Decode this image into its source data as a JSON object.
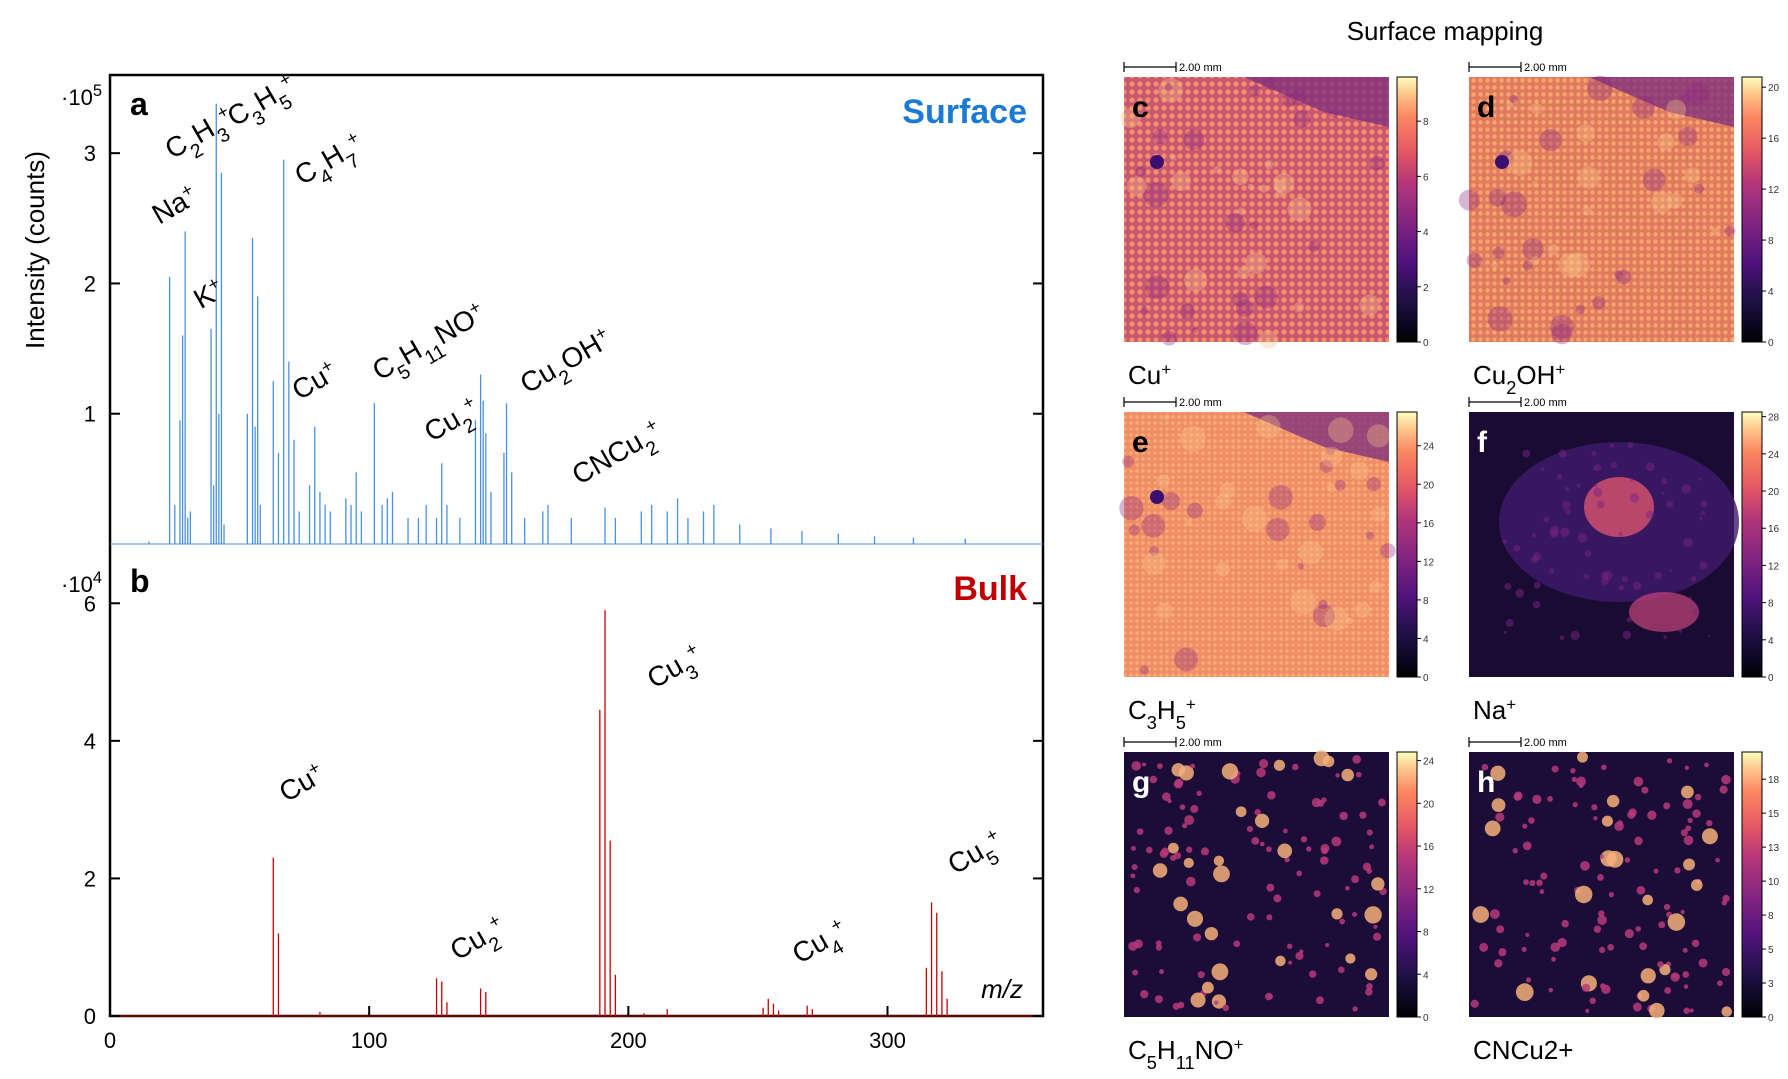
{
  "figure_title": "Surface mapping",
  "chart_data": [
    {
      "type": "line",
      "panel": "a",
      "title": "Surface",
      "title_color": "#1a7ad4",
      "series_color": "#4a90e2",
      "ylabel": "Intensity (counts)",
      "y_multiplier": "·10",
      "y_exponent": "5",
      "xlim": [
        0,
        360
      ],
      "ylim": [
        0,
        3.6
      ],
      "yticks": [
        "1",
        "2",
        "3"
      ],
      "ytick_values": [
        1,
        2,
        3
      ],
      "peaks": [
        {
          "x": 15,
          "y": 0.02
        },
        {
          "x": 23,
          "y": 2.05
        },
        {
          "x": 25,
          "y": 0.3
        },
        {
          "x": 27,
          "y": 0.95
        },
        {
          "x": 28,
          "y": 1.6
        },
        {
          "x": 29,
          "y": 2.4
        },
        {
          "x": 30,
          "y": 0.2
        },
        {
          "x": 31,
          "y": 0.25
        },
        {
          "x": 39,
          "y": 1.65
        },
        {
          "x": 40,
          "y": 0.45
        },
        {
          "x": 41,
          "y": 3.38
        },
        {
          "x": 42,
          "y": 1.0
        },
        {
          "x": 43,
          "y": 2.85
        },
        {
          "x": 44,
          "y": 0.15
        },
        {
          "x": 53,
          "y": 1.0
        },
        {
          "x": 55,
          "y": 2.35
        },
        {
          "x": 56,
          "y": 0.9
        },
        {
          "x": 57,
          "y": 1.9
        },
        {
          "x": 58,
          "y": 0.3
        },
        {
          "x": 63,
          "y": 1.25
        },
        {
          "x": 65,
          "y": 0.7
        },
        {
          "x": 67,
          "y": 2.95
        },
        {
          "x": 69,
          "y": 1.4
        },
        {
          "x": 71,
          "y": 0.8
        },
        {
          "x": 73,
          "y": 0.25
        },
        {
          "x": 77,
          "y": 0.45
        },
        {
          "x": 79,
          "y": 0.9
        },
        {
          "x": 81,
          "y": 0.4
        },
        {
          "x": 83,
          "y": 0.3
        },
        {
          "x": 85,
          "y": 0.25
        },
        {
          "x": 91,
          "y": 0.35
        },
        {
          "x": 93,
          "y": 0.3
        },
        {
          "x": 95,
          "y": 0.55
        },
        {
          "x": 97,
          "y": 0.25
        },
        {
          "x": 102,
          "y": 1.08
        },
        {
          "x": 105,
          "y": 0.3
        },
        {
          "x": 107,
          "y": 0.35
        },
        {
          "x": 109,
          "y": 0.4
        },
        {
          "x": 115,
          "y": 0.2
        },
        {
          "x": 119,
          "y": 0.2
        },
        {
          "x": 122,
          "y": 0.3
        },
        {
          "x": 126,
          "y": 0.2
        },
        {
          "x": 128,
          "y": 0.62
        },
        {
          "x": 130,
          "y": 0.3
        },
        {
          "x": 135,
          "y": 0.2
        },
        {
          "x": 141,
          "y": 0.95
        },
        {
          "x": 143,
          "y": 1.3
        },
        {
          "x": 144,
          "y": 1.1
        },
        {
          "x": 145,
          "y": 0.85
        },
        {
          "x": 147,
          "y": 0.4
        },
        {
          "x": 152,
          "y": 0.7
        },
        {
          "x": 153,
          "y": 1.08
        },
        {
          "x": 155,
          "y": 0.55
        },
        {
          "x": 160,
          "y": 0.2
        },
        {
          "x": 167,
          "y": 0.25
        },
        {
          "x": 169,
          "y": 0.3
        },
        {
          "x": 178,
          "y": 0.2
        },
        {
          "x": 191,
          "y": 0.28
        },
        {
          "x": 195,
          "y": 0.2
        },
        {
          "x": 205,
          "y": 0.25
        },
        {
          "x": 209,
          "y": 0.3
        },
        {
          "x": 215,
          "y": 0.25
        },
        {
          "x": 219,
          "y": 0.35
        },
        {
          "x": 223,
          "y": 0.2
        },
        {
          "x": 229,
          "y": 0.25
        },
        {
          "x": 233,
          "y": 0.3
        },
        {
          "x": 243,
          "y": 0.15
        },
        {
          "x": 255,
          "y": 0.12
        },
        {
          "x": 267,
          "y": 0.1
        },
        {
          "x": 281,
          "y": 0.08
        },
        {
          "x": 295,
          "y": 0.06
        },
        {
          "x": 310,
          "y": 0.05
        },
        {
          "x": 330,
          "y": 0.04
        }
      ],
      "annotations": [
        {
          "base": "Na",
          "subs": [],
          "charge": "+",
          "x": 19,
          "y": 2.45
        },
        {
          "base": "C",
          "subs": [
            "2",
            "H",
            "3"
          ],
          "charge": "+",
          "x": 24,
          "y": 2.95
        },
        {
          "base": "K",
          "subs": [],
          "charge": "+",
          "x": 35,
          "y": 1.8
        },
        {
          "base": "C",
          "subs": [
            "3",
            "H",
            "5"
          ],
          "charge": "+",
          "x": 48,
          "y": 3.2
        },
        {
          "base": "C",
          "subs": [
            "4",
            "H",
            "7"
          ],
          "charge": "+",
          "x": 74,
          "y": 2.75
        },
        {
          "base": "Cu",
          "subs": [],
          "charge": "+",
          "x": 73,
          "y": 1.1
        },
        {
          "base": "C",
          "subs": [
            "5",
            "H",
            "11",
            "NO"
          ],
          "charge": "+",
          "x": 104,
          "y": 1.25
        },
        {
          "base": "Cu",
          "subs": [
            "2"
          ],
          "charge": "+",
          "x": 124,
          "y": 0.78
        },
        {
          "base": "Cu",
          "subs": [
            "2",
            "OH"
          ],
          "charge": "+",
          "x": 161,
          "y": 1.15
        },
        {
          "base": "CNCu",
          "subs": [
            "2"
          ],
          "charge": "+",
          "x": 181,
          "y": 0.45
        }
      ]
    },
    {
      "type": "line",
      "panel": "b",
      "title": "Bulk",
      "title_color": "#c00000",
      "series_color": "#cc0000",
      "xlabel": "m/z",
      "y_multiplier": "·10",
      "y_exponent": "4",
      "xlim": [
        0,
        360
      ],
      "ylim": [
        0,
        6.6
      ],
      "xticks": [
        "0",
        "100",
        "200",
        "300"
      ],
      "xtick_values": [
        0,
        100,
        200,
        300
      ],
      "yticks": [
        "0",
        "2",
        "4",
        "6"
      ],
      "ytick_values": [
        0,
        2,
        4,
        6
      ],
      "peaks": [
        {
          "x": 63,
          "y": 2.3
        },
        {
          "x": 65,
          "y": 1.2
        },
        {
          "x": 81,
          "y": 0.06
        },
        {
          "x": 126,
          "y": 0.55
        },
        {
          "x": 128,
          "y": 0.5
        },
        {
          "x": 130,
          "y": 0.2
        },
        {
          "x": 143,
          "y": 0.4
        },
        {
          "x": 145,
          "y": 0.35
        },
        {
          "x": 189,
          "y": 4.45
        },
        {
          "x": 191,
          "y": 5.9
        },
        {
          "x": 193,
          "y": 2.55
        },
        {
          "x": 195,
          "y": 0.6
        },
        {
          "x": 206,
          "y": 0.04
        },
        {
          "x": 215,
          "y": 0.1
        },
        {
          "x": 252,
          "y": 0.12
        },
        {
          "x": 254,
          "y": 0.25
        },
        {
          "x": 256,
          "y": 0.18
        },
        {
          "x": 258,
          "y": 0.08
        },
        {
          "x": 269,
          "y": 0.15
        },
        {
          "x": 271,
          "y": 0.1
        },
        {
          "x": 315,
          "y": 0.7
        },
        {
          "x": 317,
          "y": 1.65
        },
        {
          "x": 319,
          "y": 1.5
        },
        {
          "x": 321,
          "y": 0.65
        },
        {
          "x": 323,
          "y": 0.25
        }
      ],
      "annotations": [
        {
          "base": "Cu",
          "subs": [],
          "charge": "+",
          "x": 68,
          "y": 3.1
        },
        {
          "base": "Cu",
          "subs": [
            "3"
          ],
          "charge": "+",
          "x": 210,
          "y": 4.75
        },
        {
          "base": "Cu",
          "subs": [
            "2"
          ],
          "charge": "+",
          "x": 134,
          "y": 0.8
        },
        {
          "base": "Cu",
          "subs": [
            "4"
          ],
          "charge": "+",
          "x": 266,
          "y": 0.75
        },
        {
          "base": "Cu",
          "subs": [
            "5"
          ],
          "charge": "+",
          "x": 326,
          "y": 2.05
        }
      ]
    }
  ],
  "maps": [
    {
      "letter": "c",
      "letter_color": "#000000",
      "ion": {
        "base": "Cu",
        "subs": [],
        "charge": "+"
      },
      "scale_label": "2.00 mm",
      "colorbar_ticks": [
        "0",
        "2",
        "4",
        "6",
        "8"
      ],
      "colorbar_values": [
        0,
        2,
        4,
        6,
        8
      ],
      "colorbar_max": 9.6,
      "style": "bright",
      "mean_level": 0.58
    },
    {
      "letter": "d",
      "letter_color": "#000000",
      "ion": {
        "base": "Cu",
        "subs": [
          "2",
          "OH"
        ],
        "charge": "+"
      },
      "scale_label": "2.00 mm",
      "colorbar_ticks": [
        "0",
        "4",
        "8",
        "12",
        "16",
        "20"
      ],
      "colorbar_values": [
        0,
        4,
        8,
        12,
        16,
        20
      ],
      "colorbar_max": 20.8,
      "style": "bright",
      "mean_level": 0.68
    },
    {
      "letter": "e",
      "letter_color": "#000000",
      "ion": {
        "base": "C",
        "subs": [
          "3",
          "H",
          "5"
        ],
        "charge": "+"
      },
      "scale_label": "2.00 mm",
      "colorbar_ticks": [
        "0",
        "4",
        "8",
        "12",
        "16",
        "20",
        "24"
      ],
      "colorbar_values": [
        0,
        4,
        8,
        12,
        16,
        20,
        24
      ],
      "colorbar_max": 27.5,
      "style": "bright",
      "mean_level": 0.75
    },
    {
      "letter": "f",
      "letter_color": "#ffffff",
      "ion": {
        "base": "Na",
        "subs": [],
        "charge": "+"
      },
      "scale_label": "2.00 mm",
      "colorbar_ticks": [
        "0",
        "4",
        "8",
        "12",
        "16",
        "20",
        "24",
        "28"
      ],
      "colorbar_values": [
        0,
        4,
        8,
        12,
        16,
        20,
        24,
        28
      ],
      "colorbar_max": 28.5,
      "style": "dark",
      "mean_level": 0.2
    },
    {
      "letter": "g",
      "letter_color": "#ffffff",
      "ion": {
        "base": "C",
        "subs": [
          "5",
          "H",
          "11",
          "NO"
        ],
        "charge": "+"
      },
      "scale_label": "2.00 mm",
      "colorbar_ticks": [
        "0",
        "4",
        "8",
        "12",
        "16",
        "20",
        "24"
      ],
      "colorbar_values": [
        0,
        4,
        8,
        12,
        16,
        20,
        24
      ],
      "colorbar_max": 24.8,
      "style": "spots",
      "mean_level": 0.12
    },
    {
      "letter": "h",
      "letter_color": "#ffffff",
      "ion": {
        "base": "CNCu",
        "subs": [],
        "charge": "",
        "suffix": "2+"
      },
      "scale_label": "2.00 mm",
      "colorbar_ticks": [
        "0",
        "3",
        "5",
        "8",
        "10",
        "13",
        "15",
        "18"
      ],
      "colorbar_values": [
        0,
        2.5,
        5,
        7.5,
        10,
        12.5,
        15,
        17.5
      ],
      "colorbar_max": 19.5,
      "style": "spots",
      "mean_level": 0.14
    }
  ]
}
